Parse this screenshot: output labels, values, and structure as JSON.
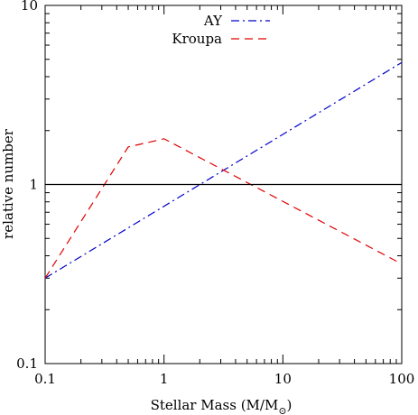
{
  "chart_data": {
    "type": "line",
    "title": "",
    "xlabel": "Stellar Mass (M/M",
    "xlabel_sub": "⊙",
    "xlabel_close": ")",
    "ylabel": "relative number",
    "x_scale": "log",
    "y_scale": "log",
    "xlim": [
      0.1,
      100
    ],
    "ylim": [
      0.1,
      10
    ],
    "x_ticks": [
      {
        "value": 0.1,
        "label": "0.1"
      },
      {
        "value": 1,
        "label": "1"
      },
      {
        "value": 10,
        "label": "10"
      },
      {
        "value": 100,
        "label": "100"
      }
    ],
    "y_ticks": [
      {
        "value": 0.1,
        "label": "0.1"
      },
      {
        "value": 1,
        "label": "1"
      },
      {
        "value": 10,
        "label": "10"
      }
    ],
    "grid": false,
    "legend_position": "top-center",
    "series": [
      {
        "name": "AY",
        "color": "#0000cc",
        "dash": "dash-dot",
        "x": [
          0.1,
          100
        ],
        "y": [
          0.3,
          4.8
        ]
      },
      {
        "name": "Kroupa",
        "color": "#e00000",
        "dash": "dashed",
        "x": [
          0.1,
          0.5,
          1,
          100
        ],
        "y": [
          0.3,
          1.62,
          1.8,
          0.36
        ]
      },
      {
        "name": "",
        "color": "#000000",
        "dash": "solid",
        "x": [
          0.1,
          100
        ],
        "y": [
          1,
          1
        ]
      }
    ]
  }
}
